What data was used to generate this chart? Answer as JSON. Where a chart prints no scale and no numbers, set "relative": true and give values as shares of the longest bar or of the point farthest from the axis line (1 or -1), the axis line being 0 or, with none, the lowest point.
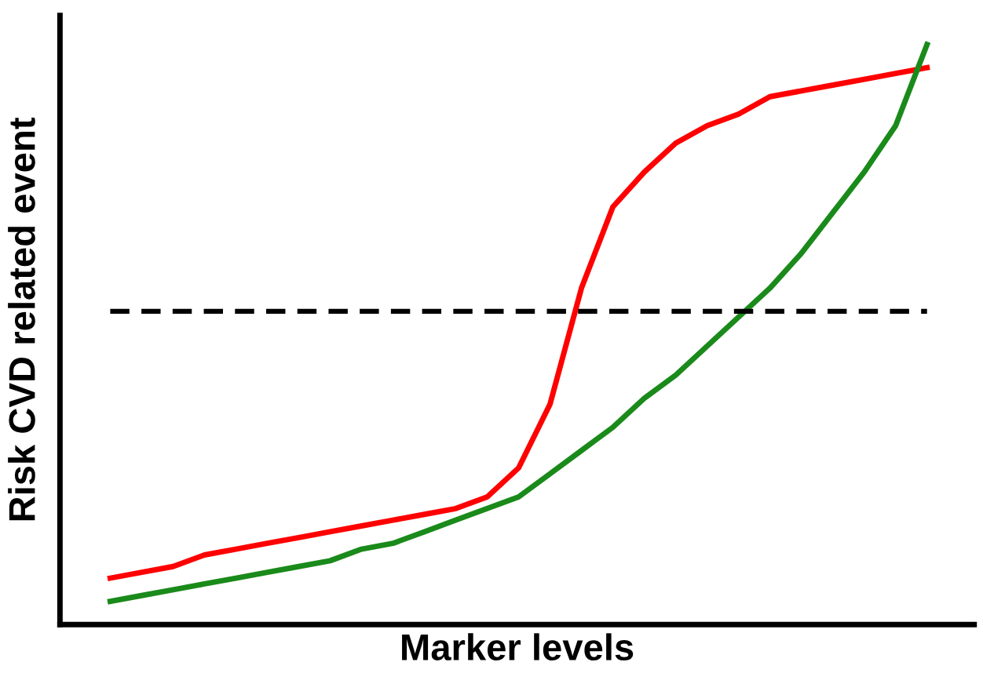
{
  "chart_data": {
    "type": "line",
    "relative": true,
    "xlabel": "Marker levels",
    "ylabel": "Risk CVD related event",
    "categories": [
      null,
      null,
      null,
      null,
      null,
      null,
      null,
      null,
      null,
      null,
      null,
      null,
      null,
      null,
      null,
      null,
      null,
      null,
      null,
      null,
      null,
      null,
      null,
      null,
      null,
      null,
      null
    ],
    "series": [
      {
        "color": "#ff0000",
        "values": [
          0.08,
          0.09,
          0.1,
          0.12,
          0.13,
          0.14,
          0.15,
          0.16,
          0.17,
          0.18,
          0.19,
          0.2,
          0.22,
          0.27,
          0.38,
          0.58,
          0.72,
          0.78,
          0.83,
          0.86,
          0.88,
          0.91,
          0.92,
          0.93,
          0.94,
          0.95,
          0.96
        ]
      },
      {
        "color": "#1a8a1a",
        "values": [
          0.04,
          0.05,
          0.06,
          0.07,
          0.08,
          0.09,
          0.1,
          0.11,
          0.13,
          0.14,
          0.16,
          0.18,
          0.2,
          0.22,
          0.26,
          0.3,
          0.34,
          0.39,
          0.43,
          0.48,
          0.53,
          0.58,
          0.64,
          0.71,
          0.78,
          0.86,
          1.0
        ]
      }
    ],
    "ref_lines": [
      {
        "axis": "y",
        "value": 0.54,
        "color": "#000000",
        "line_style": "dashed"
      }
    ],
    "legend": false,
    "marker": "none",
    "line_style": "solid"
  }
}
